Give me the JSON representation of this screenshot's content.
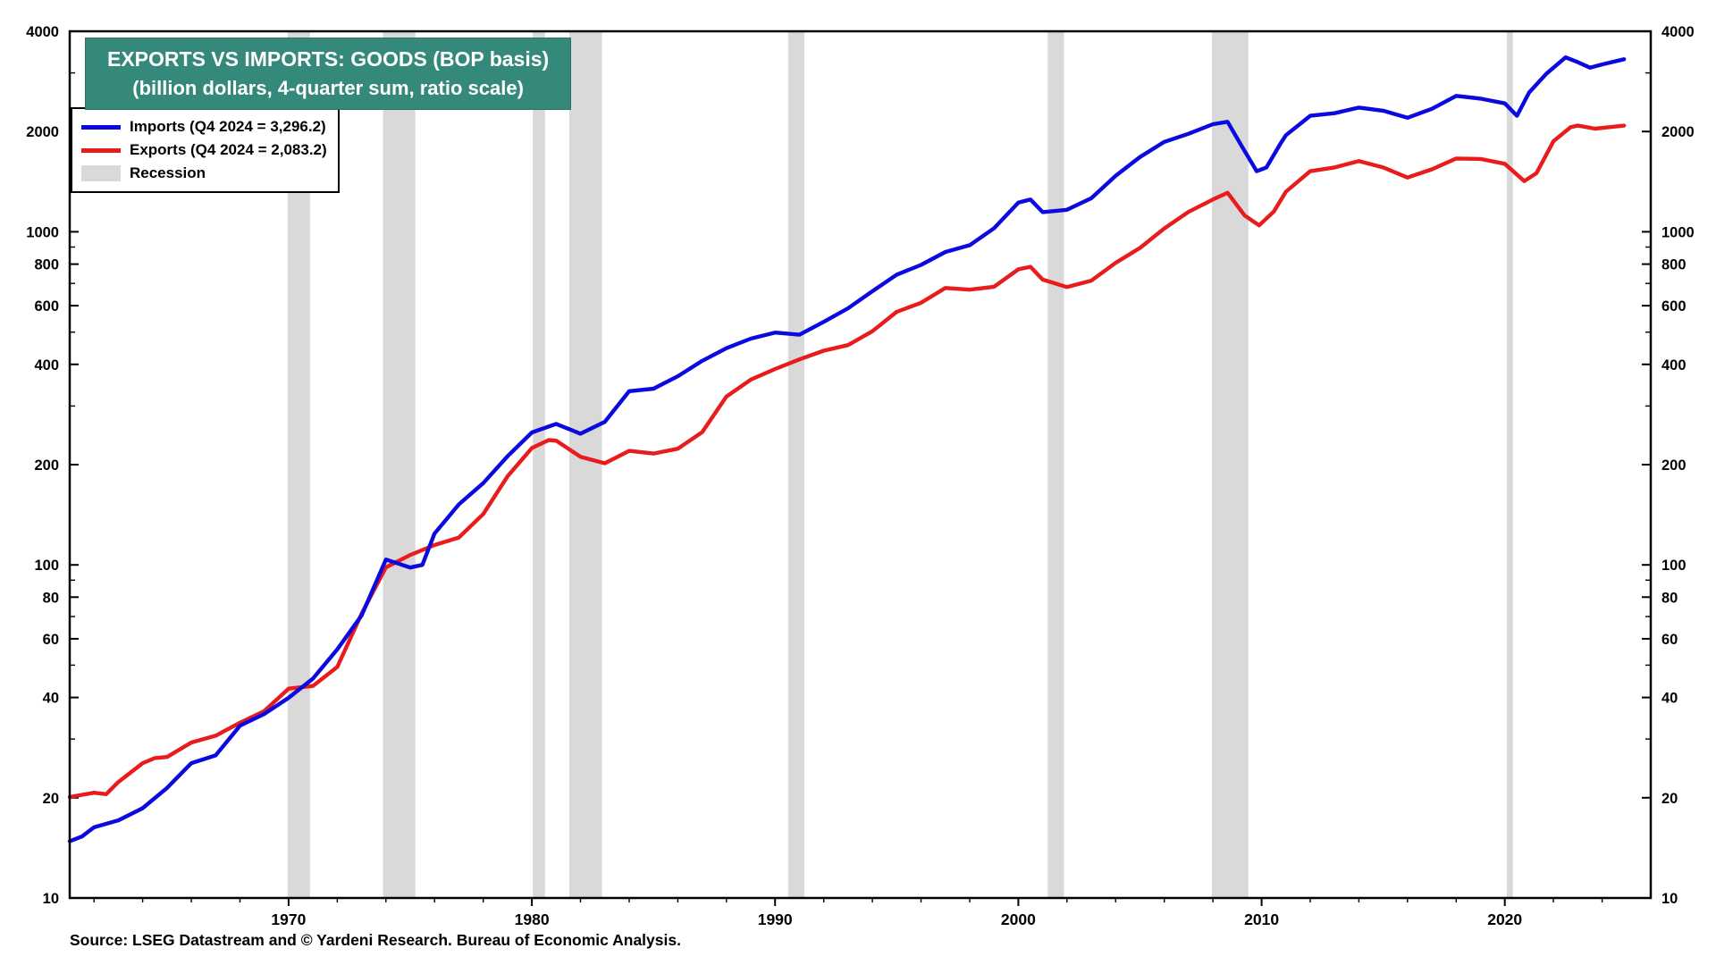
{
  "source": "Source: LSEG Datastream and © Yardeni Research. Bureau of Economic Analysis.",
  "colors": {
    "title_bg": "#35897b",
    "title_text": "#ffffff",
    "imports_line": "#0a0ae0",
    "exports_line": "#e81c1c",
    "recession_band": "#d9d9d9",
    "frame": "#000000"
  },
  "chart_data": {
    "type": "line",
    "title": "EXPORTS VS IMPORTS: GOODS (BOP basis)",
    "subtitle": "(billion dollars, 4-quarter sum, ratio scale)",
    "y_scale": "log",
    "ylim": [
      10,
      4000
    ],
    "xlim": [
      1961,
      2026
    ],
    "y_ticks_labeled": [
      10,
      20,
      40,
      60,
      80,
      100,
      200,
      400,
      600,
      800,
      1000,
      2000,
      4000
    ],
    "y_ticks_minor": [
      30,
      50,
      70,
      90,
      300,
      500,
      700,
      900,
      3000
    ],
    "x_ticks_labeled": [
      1970,
      1980,
      1990,
      2000,
      2010,
      2020
    ],
    "x_minor_step": 2,
    "legend_position": "top-left",
    "grid": false,
    "legend": [
      {
        "label": "Imports (Q4 2024 = 3,296.2)",
        "color": "#0a0ae0",
        "type": "line"
      },
      {
        "label": "Exports (Q4 2024 = 2,083.2)",
        "color": "#e81c1c",
        "type": "line"
      },
      {
        "label": "Recession",
        "color": "#d9d9d9",
        "type": "patch"
      }
    ],
    "recessions": [
      [
        1969.96,
        1970.88
      ],
      [
        1973.88,
        1975.21
      ],
      [
        1980.04,
        1980.54
      ],
      [
        1981.54,
        1982.88
      ],
      [
        1990.54,
        1991.21
      ],
      [
        2001.21,
        2001.88
      ],
      [
        2007.96,
        2009.46
      ],
      [
        2020.08,
        2020.33
      ]
    ],
    "series": [
      {
        "name": "Imports",
        "color": "#0a0ae0",
        "points": [
          [
            1961,
            14.8
          ],
          [
            1961.5,
            15.3
          ],
          [
            1962,
            16.3
          ],
          [
            1963,
            17.1
          ],
          [
            1964,
            18.6
          ],
          [
            1965,
            21.4
          ],
          [
            1966,
            25.4
          ],
          [
            1967,
            26.8
          ],
          [
            1968,
            32.9
          ],
          [
            1969,
            35.7
          ],
          [
            1970,
            39.9
          ],
          [
            1971,
            45.6
          ],
          [
            1972,
            55.8
          ],
          [
            1973,
            70.5
          ],
          [
            1974,
            103.8
          ],
          [
            1975,
            98.2
          ],
          [
            1975.5,
            100.0
          ],
          [
            1976,
            124.2
          ],
          [
            1977,
            151.9
          ],
          [
            1978,
            176.0
          ],
          [
            1979,
            212.0
          ],
          [
            1980,
            249.8
          ],
          [
            1981,
            265.1
          ],
          [
            1982,
            247.6
          ],
          [
            1983,
            268.9
          ],
          [
            1984,
            332.4
          ],
          [
            1985,
            338.1
          ],
          [
            1986,
            368.4
          ],
          [
            1987,
            409.8
          ],
          [
            1988,
            447.2
          ],
          [
            1989,
            477.7
          ],
          [
            1990,
            498.4
          ],
          [
            1991,
            491.0
          ],
          [
            1992,
            536.5
          ],
          [
            1993,
            589.4
          ],
          [
            1994,
            663.3
          ],
          [
            1995,
            743.4
          ],
          [
            1996,
            795.3
          ],
          [
            1997,
            869.7
          ],
          [
            1998,
            911.9
          ],
          [
            1999,
            1024.6
          ],
          [
            2000,
            1224.4
          ],
          [
            2000.5,
            1250.0
          ],
          [
            2001,
            1145.9
          ],
          [
            2002,
            1164.7
          ],
          [
            2003,
            1260.7
          ],
          [
            2004,
            1472.9
          ],
          [
            2005,
            1677.4
          ],
          [
            2006,
            1861.4
          ],
          [
            2007,
            1969.4
          ],
          [
            2008,
            2103.6
          ],
          [
            2008.6,
            2140.0
          ],
          [
            2009.2,
            1800.0
          ],
          [
            2009.8,
            1520.0
          ],
          [
            2010.2,
            1560.0
          ],
          [
            2010.8,
            1850.0
          ],
          [
            2011,
            1950.0
          ],
          [
            2012,
            2230.0
          ],
          [
            2013,
            2270.0
          ],
          [
            2014,
            2360.0
          ],
          [
            2015,
            2310.0
          ],
          [
            2016,
            2200.0
          ],
          [
            2017,
            2340.0
          ],
          [
            2018,
            2560.0
          ],
          [
            2019,
            2510.0
          ],
          [
            2020,
            2430.0
          ],
          [
            2020.5,
            2230.0
          ],
          [
            2021,
            2620.0
          ],
          [
            2021.7,
            2980.0
          ],
          [
            2022.5,
            3340.0
          ],
          [
            2023,
            3230.0
          ],
          [
            2023.5,
            3110.0
          ],
          [
            2024,
            3180.0
          ],
          [
            2024.9,
            3296.2
          ]
        ]
      },
      {
        "name": "Exports",
        "color": "#e81c1c",
        "points": [
          [
            1961,
            20.1
          ],
          [
            1962,
            20.7
          ],
          [
            1962.5,
            20.5
          ],
          [
            1963,
            22.3
          ],
          [
            1964,
            25.4
          ],
          [
            1964.5,
            26.3
          ],
          [
            1965,
            26.5
          ],
          [
            1966,
            29.3
          ],
          [
            1967,
            30.7
          ],
          [
            1968,
            33.6
          ],
          [
            1969,
            36.4
          ],
          [
            1970,
            42.5
          ],
          [
            1971,
            43.3
          ],
          [
            1972,
            49.4
          ],
          [
            1973,
            71.4
          ],
          [
            1974,
            98.3
          ],
          [
            1975,
            107.1
          ],
          [
            1976,
            114.7
          ],
          [
            1977,
            120.8
          ],
          [
            1978,
            142.1
          ],
          [
            1979,
            184.4
          ],
          [
            1980,
            224.3
          ],
          [
            1980.7,
            237.0
          ],
          [
            1981,
            236.0
          ],
          [
            1982,
            211.2
          ],
          [
            1983,
            201.8
          ],
          [
            1984,
            219.9
          ],
          [
            1985,
            215.9
          ],
          [
            1986,
            223.3
          ],
          [
            1987,
            250.2
          ],
          [
            1988,
            320.2
          ],
          [
            1989,
            359.9
          ],
          [
            1990,
            387.4
          ],
          [
            1991,
            414.1
          ],
          [
            1992,
            439.6
          ],
          [
            1993,
            456.9
          ],
          [
            1994,
            502.9
          ],
          [
            1995,
            575.2
          ],
          [
            1996,
            612.1
          ],
          [
            1997,
            678.4
          ],
          [
            1998,
            670.4
          ],
          [
            1999,
            683.9
          ],
          [
            2000,
            771.9
          ],
          [
            2000.5,
            785.0
          ],
          [
            2001,
            718.7
          ],
          [
            2002,
            682.4
          ],
          [
            2003,
            713.4
          ],
          [
            2004,
            807.5
          ],
          [
            2005,
            894.6
          ],
          [
            2006,
            1023.1
          ],
          [
            2007,
            1148.2
          ],
          [
            2008,
            1250.0
          ],
          [
            2008.6,
            1310.0
          ],
          [
            2009.3,
            1120.0
          ],
          [
            2009.9,
            1046.0
          ],
          [
            2010.5,
            1150.0
          ],
          [
            2011,
            1320.0
          ],
          [
            2012,
            1520.0
          ],
          [
            2013,
            1560.0
          ],
          [
            2014,
            1630.0
          ],
          [
            2015,
            1560.0
          ],
          [
            2016,
            1455.0
          ],
          [
            2017,
            1540.0
          ],
          [
            2018,
            1660.0
          ],
          [
            2019,
            1655.0
          ],
          [
            2020,
            1600.0
          ],
          [
            2020.8,
            1420.0
          ],
          [
            2021.3,
            1500.0
          ],
          [
            2022,
            1870.0
          ],
          [
            2022.7,
            2060.0
          ],
          [
            2023,
            2085.0
          ],
          [
            2023.7,
            2040.0
          ],
          [
            2024,
            2050.0
          ],
          [
            2024.9,
            2083.2
          ]
        ]
      }
    ]
  }
}
